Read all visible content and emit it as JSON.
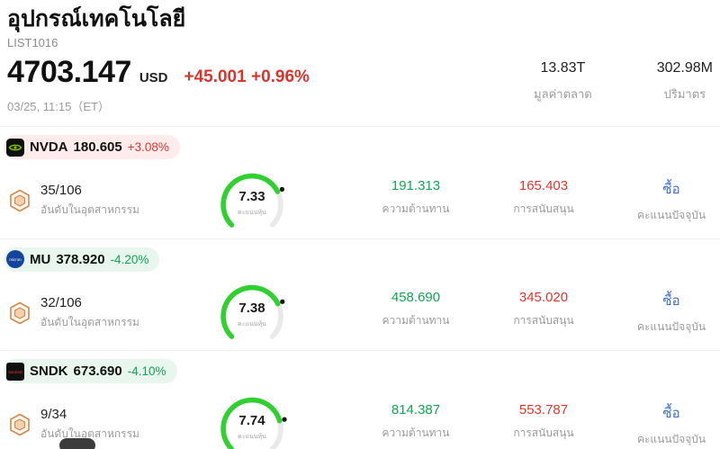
{
  "colors": {
    "up": "#e0352c",
    "down": "#12a452",
    "resistance": "#12a452",
    "support": "#e0352c",
    "buy": "#3f6fce",
    "gauge": "#2fd02f"
  },
  "header": {
    "title": "อุปกรณ์เทคโนโลยี",
    "list_id": "LIST1016",
    "price": "4703.147",
    "currency": "USD",
    "change": "+45.001 +0.96%",
    "timestamp": "03/25, 11:15（ET）",
    "market_cap": {
      "value": "13.83T",
      "label": "มูลค่าตลาด"
    },
    "volume": {
      "value": "302.98M",
      "label": "ปริมาตร"
    }
  },
  "stocks": [
    {
      "ticker": "NVDA",
      "price": "180.605",
      "change": "+3.08%",
      "dir": "up",
      "rank": "35/106",
      "rank_label": "อันดับในอุตสาหกรรม",
      "score": "7.33",
      "score_label": "คะแนนหุ้น",
      "resistance": "191.313",
      "resistance_label": "ความต้านทาน",
      "support": "165.403",
      "support_label": "การสนับสนุน",
      "signal": "ซื้อ",
      "signal_label": "คะแนนปัจจุบัน"
    },
    {
      "ticker": "MU",
      "price": "378.920",
      "change": "-4.20%",
      "dir": "down",
      "rank": "32/106",
      "rank_label": "อันดับในอุตสาหกรรม",
      "score": "7.38",
      "score_label": "คะแนนหุ้น",
      "resistance": "458.690",
      "resistance_label": "ความต้านทาน",
      "support": "345.020",
      "support_label": "การสนับสนุน",
      "signal": "ซื้อ",
      "signal_label": "คะแนนปัจจุบัน"
    },
    {
      "ticker": "SNDK",
      "price": "673.690",
      "change": "-4.10%",
      "dir": "down",
      "rank": "9/34",
      "rank_label": "อันดับในอุตสาหกรรม",
      "score": "7.74",
      "score_label": "คะแนนหุ้น",
      "resistance": "814.387",
      "resistance_label": "ความต้านทาน",
      "support": "553.787",
      "support_label": "การสนับสนุน",
      "signal": "ซื้อ",
      "signal_label": "คะแนนปัจจุบัน"
    }
  ]
}
